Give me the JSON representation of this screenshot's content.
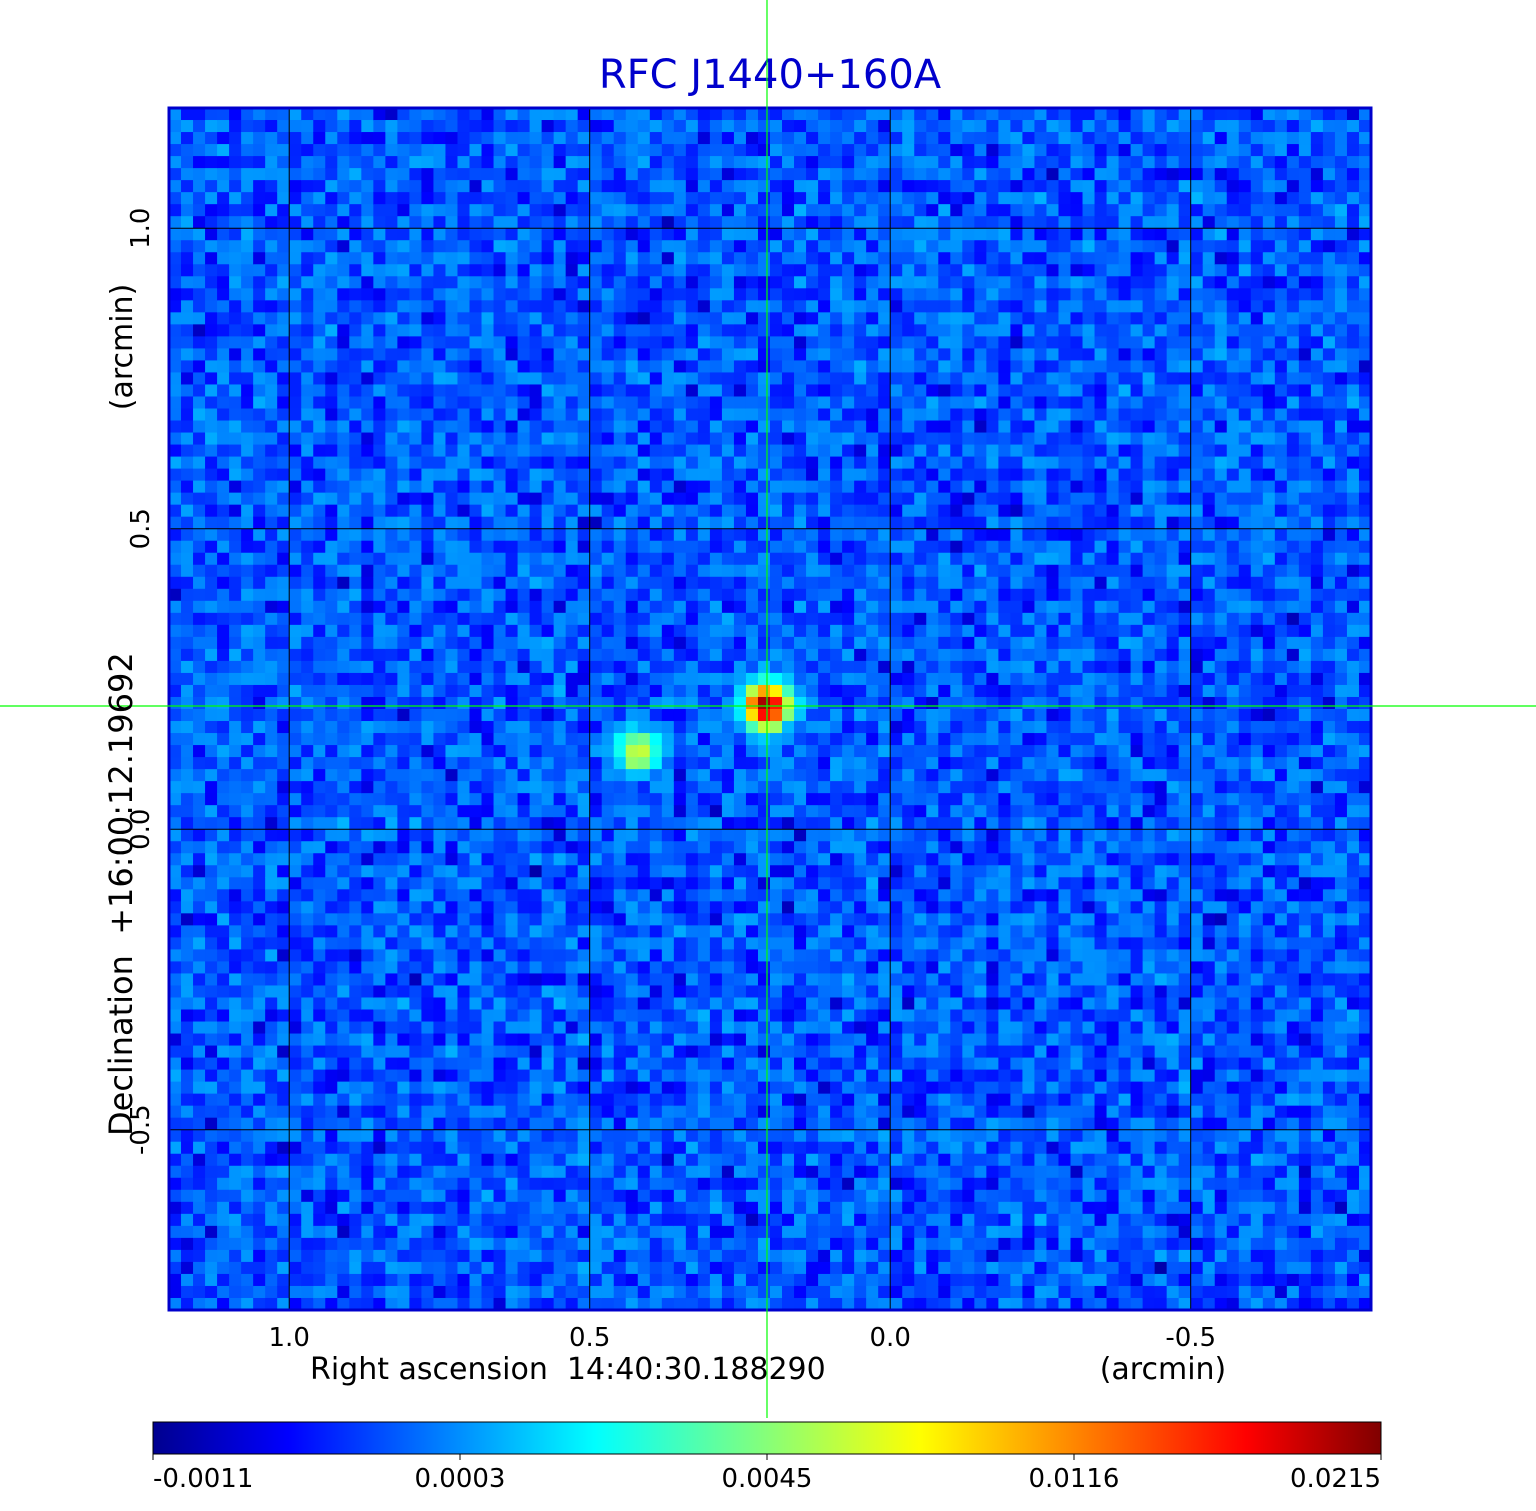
{
  "chart_data": {
    "type": "heatmap",
    "title": "RFC J1440+160A",
    "xlabel": "Right ascension  14:40:30.188290",
    "xlabel_unit": "(arcmin)",
    "ylabel": "Declination  +16:00:12.19692",
    "ylabel_unit": "(arcmin)",
    "x_axis": {
      "reversed": true,
      "range": [
        1.2,
        -0.8
      ],
      "ticks": [
        1.0,
        0.5,
        0.0,
        -0.5
      ],
      "tick_labels": [
        "1.0",
        "0.5",
        "0.0",
        "-0.5"
      ]
    },
    "y_axis": {
      "range": [
        -0.8,
        1.2
      ],
      "ticks": [
        -0.5,
        0.0,
        0.5,
        1.0
      ],
      "tick_labels": [
        "-0.5",
        "0.0",
        "0.5",
        "1.0"
      ]
    },
    "grid": true,
    "crosshair": {
      "x": 0.205,
      "y": 0.205
    },
    "sources": [
      {
        "x": 0.205,
        "y": 0.205,
        "peak": 0.0215
      },
      {
        "x": 0.42,
        "y": 0.13,
        "peak": 0.0068
      }
    ],
    "noise_level": 0.0006,
    "pixel_size_arcmin": 0.02,
    "colorbar": {
      "position": "bottom",
      "tick_values": [
        -0.0011,
        0.0003,
        0.0045,
        0.0116,
        0.0215
      ],
      "tick_labels": [
        "-0.0011",
        "0.0003",
        "0.0045",
        "0.0116",
        "0.0215"
      ]
    },
    "colormap": [
      "#00008f",
      "#0000ff",
      "#00ffff",
      "#ffff00",
      "#ff0000",
      "#800000"
    ],
    "colors": {
      "title": "#0000cc",
      "frame": "#0000cc",
      "grid": "#000000",
      "crosshair": "#00ff00"
    }
  }
}
